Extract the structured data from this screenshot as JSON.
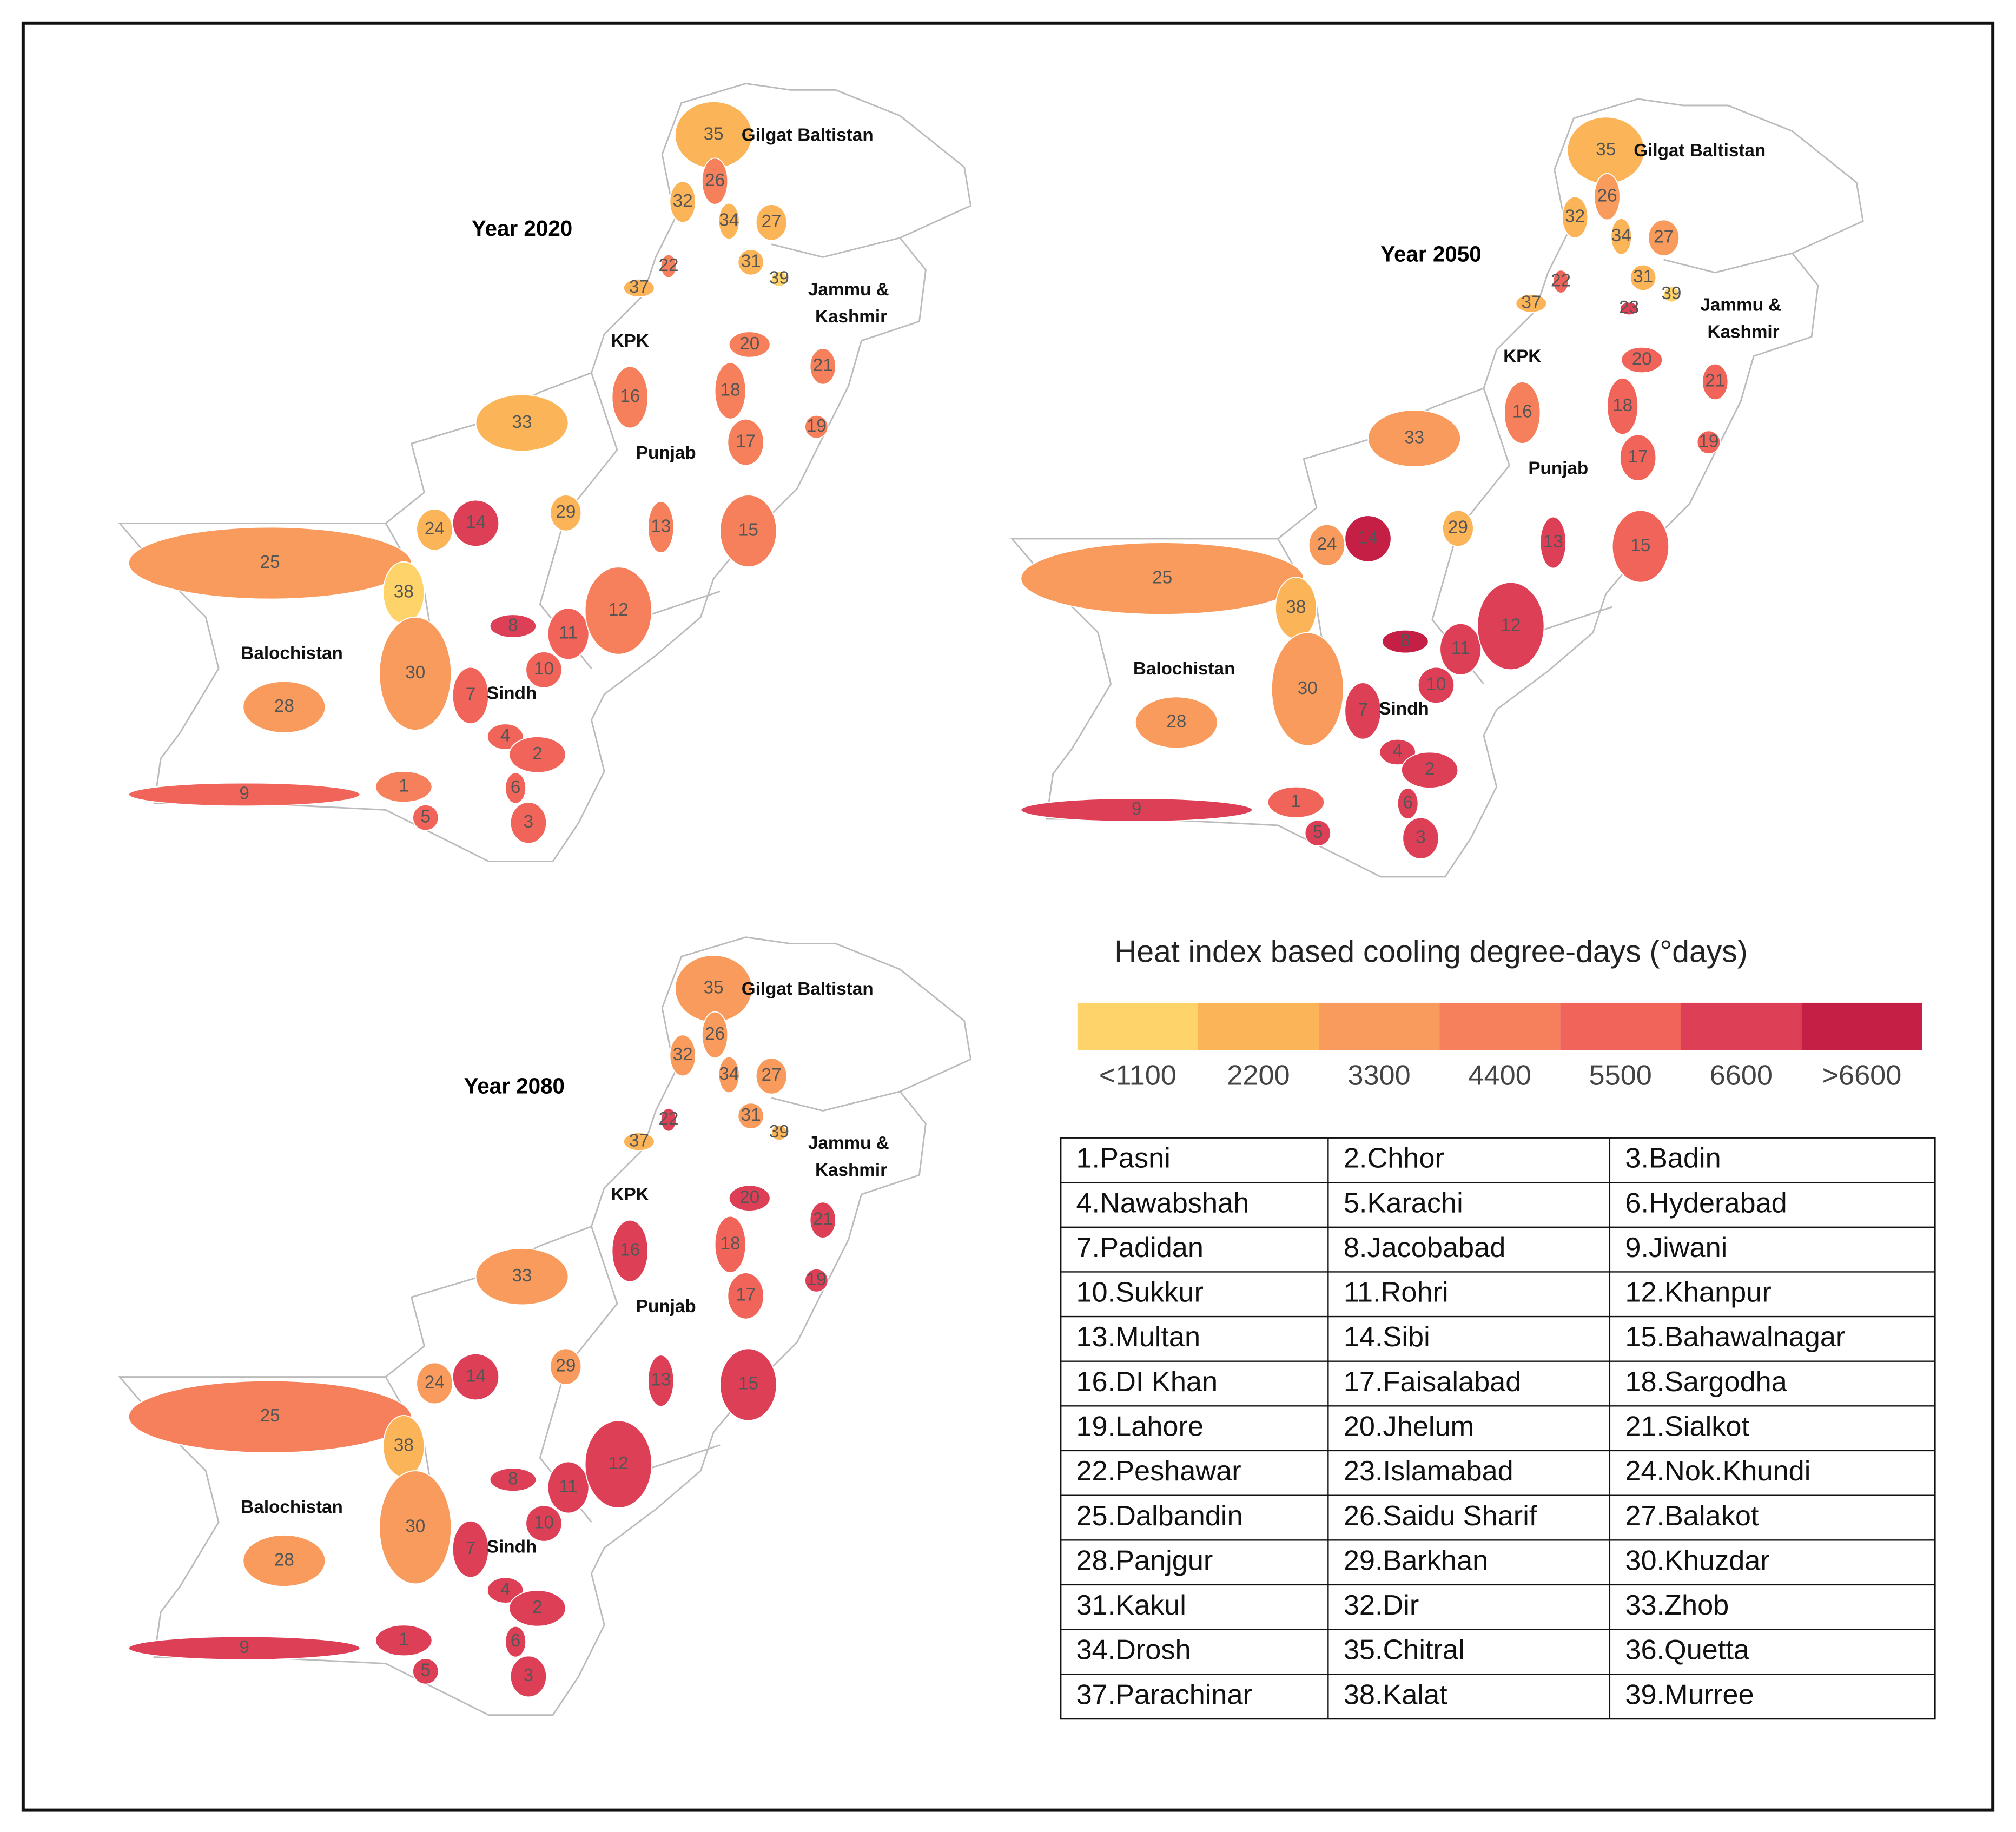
{
  "figure": {
    "maps": [
      {
        "title": "Year 2020",
        "regions": [
          "Gilgat Baltistan",
          "Jammu &",
          "Kashmir",
          "KPK",
          "Punjab",
          "Balochistan",
          "Sindh"
        ],
        "stations": [
          {
            "label": "35",
            "color": "#fbb457"
          },
          {
            "label": "26",
            "color": "#f6805c"
          },
          {
            "label": "32",
            "color": "#fbb457"
          },
          {
            "label": "34",
            "color": "#fbb457"
          },
          {
            "label": "27",
            "color": "#fbb457"
          },
          {
            "label": "31",
            "color": "#fbb457"
          },
          {
            "label": "39",
            "color": "#fdd36a"
          },
          {
            "label": "22",
            "color": "#f6805c"
          },
          {
            "label": "37",
            "color": "#fbb457"
          },
          {
            "label": "20",
            "color": "#f6805c"
          },
          {
            "label": "21",
            "color": "#f6805c"
          },
          {
            "label": "16",
            "color": "#f6805c"
          },
          {
            "label": "18",
            "color": "#f6805c"
          },
          {
            "label": "17",
            "color": "#f6805c"
          },
          {
            "label": "19",
            "color": "#f6805c"
          },
          {
            "label": "33",
            "color": "#fbb457"
          },
          {
            "label": "29",
            "color": "#fbb457"
          },
          {
            "label": "13",
            "color": "#f6805c"
          },
          {
            "label": "15",
            "color": "#f6805c"
          },
          {
            "label": "14",
            "color": "#dd3f56"
          },
          {
            "label": "24",
            "color": "#fbb457"
          },
          {
            "label": "25",
            "color": "#f99b5c"
          },
          {
            "label": "38",
            "color": "#fdd36a"
          },
          {
            "label": "8",
            "color": "#dd3f56"
          },
          {
            "label": "11",
            "color": "#f1645a"
          },
          {
            "label": "12",
            "color": "#f6805c"
          },
          {
            "label": "10",
            "color": "#f1645a"
          },
          {
            "label": "30",
            "color": "#f99b5c"
          },
          {
            "label": "28",
            "color": "#f99b5c"
          },
          {
            "label": "7",
            "color": "#f1645a"
          },
          {
            "label": "4",
            "color": "#f1645a"
          },
          {
            "label": "2",
            "color": "#f1645a"
          },
          {
            "label": "6",
            "color": "#f1645a"
          },
          {
            "label": "3",
            "color": "#f1645a"
          },
          {
            "label": "9",
            "color": "#f1645a"
          },
          {
            "label": "1",
            "color": "#f6805c"
          },
          {
            "label": "5",
            "color": "#f1645a"
          }
        ]
      },
      {
        "title": "Year 2050",
        "regions": [
          "Gilgat Baltistan",
          "Jammu &",
          "Kashmir",
          "KPK",
          "Punjab",
          "Balochistan",
          "Sindh"
        ],
        "stations": [
          {
            "label": "35",
            "color": "#fbb457"
          },
          {
            "label": "26",
            "color": "#f99b5c"
          },
          {
            "label": "32",
            "color": "#fbb457"
          },
          {
            "label": "34",
            "color": "#fbb457"
          },
          {
            "label": "27",
            "color": "#f99b5c"
          },
          {
            "label": "31",
            "color": "#fbb457"
          },
          {
            "label": "39",
            "color": "#fdd36a"
          },
          {
            "label": "23",
            "color": "#dd3f56"
          },
          {
            "label": "22",
            "color": "#f1645a"
          },
          {
            "label": "37",
            "color": "#fbb457"
          },
          {
            "label": "20",
            "color": "#f1645a"
          },
          {
            "label": "21",
            "color": "#f1645a"
          },
          {
            "label": "16",
            "color": "#f6805c"
          },
          {
            "label": "18",
            "color": "#f1645a"
          },
          {
            "label": "17",
            "color": "#f1645a"
          },
          {
            "label": "19",
            "color": "#f1645a"
          },
          {
            "label": "33",
            "color": "#f99b5c"
          },
          {
            "label": "29",
            "color": "#fbb457"
          },
          {
            "label": "13",
            "color": "#dd3f56"
          },
          {
            "label": "15",
            "color": "#f1645a"
          },
          {
            "label": "14",
            "color": "#c51f45"
          },
          {
            "label": "24",
            "color": "#f99b5c"
          },
          {
            "label": "25",
            "color": "#f99b5c"
          },
          {
            "label": "38",
            "color": "#fbb457"
          },
          {
            "label": "8",
            "color": "#c51f45"
          },
          {
            "label": "11",
            "color": "#dd3f56"
          },
          {
            "label": "12",
            "color": "#dd3f56"
          },
          {
            "label": "10",
            "color": "#dd3f56"
          },
          {
            "label": "30",
            "color": "#f99b5c"
          },
          {
            "label": "28",
            "color": "#f99b5c"
          },
          {
            "label": "7",
            "color": "#dd3f56"
          },
          {
            "label": "4",
            "color": "#dd3f56"
          },
          {
            "label": "2",
            "color": "#dd3f56"
          },
          {
            "label": "6",
            "color": "#dd3f56"
          },
          {
            "label": "3",
            "color": "#dd3f56"
          },
          {
            "label": "9",
            "color": "#dd3f56"
          },
          {
            "label": "1",
            "color": "#f1645a"
          },
          {
            "label": "5",
            "color": "#dd3f56"
          }
        ]
      },
      {
        "title": "Year 2080",
        "regions": [
          "Gilgat Baltistan",
          "Jammu &",
          "Kashmir",
          "KPK",
          "Punjab",
          "Balochistan",
          "Sindh"
        ],
        "stations": [
          {
            "label": "35",
            "color": "#f99b5c"
          },
          {
            "label": "26",
            "color": "#f99b5c"
          },
          {
            "label": "32",
            "color": "#f99b5c"
          },
          {
            "label": "34",
            "color": "#f99b5c"
          },
          {
            "label": "27",
            "color": "#f99b5c"
          },
          {
            "label": "31",
            "color": "#f99b5c"
          },
          {
            "label": "39",
            "color": "#fbb457"
          },
          {
            "label": "22",
            "color": "#dd3f56"
          },
          {
            "label": "37",
            "color": "#fbb457"
          },
          {
            "label": "20",
            "color": "#dd3f56"
          },
          {
            "label": "21",
            "color": "#dd3f56"
          },
          {
            "label": "16",
            "color": "#dd3f56"
          },
          {
            "label": "18",
            "color": "#f1645a"
          },
          {
            "label": "17",
            "color": "#f1645a"
          },
          {
            "label": "19",
            "color": "#dd3f56"
          },
          {
            "label": "33",
            "color": "#f99b5c"
          },
          {
            "label": "29",
            "color": "#f99b5c"
          },
          {
            "label": "13",
            "color": "#dd3f56"
          },
          {
            "label": "15",
            "color": "#dd3f56"
          },
          {
            "label": "14",
            "color": "#dd3f56"
          },
          {
            "label": "24",
            "color": "#f99b5c"
          },
          {
            "label": "25",
            "color": "#f6805c"
          },
          {
            "label": "38",
            "color": "#fbb457"
          },
          {
            "label": "8",
            "color": "#dd3f56"
          },
          {
            "label": "11",
            "color": "#dd3f56"
          },
          {
            "label": "12",
            "color": "#dd3f56"
          },
          {
            "label": "10",
            "color": "#dd3f56"
          },
          {
            "label": "30",
            "color": "#f99b5c"
          },
          {
            "label": "28",
            "color": "#f99b5c"
          },
          {
            "label": "7",
            "color": "#dd3f56"
          },
          {
            "label": "4",
            "color": "#dd3f56"
          },
          {
            "label": "2",
            "color": "#dd3f56"
          },
          {
            "label": "6",
            "color": "#dd3f56"
          },
          {
            "label": "3",
            "color": "#dd3f56"
          },
          {
            "label": "9",
            "color": "#dd3f56"
          },
          {
            "label": "1",
            "color": "#dd3f56"
          },
          {
            "label": "5",
            "color": "#dd3f56"
          }
        ]
      }
    ],
    "legend": {
      "title": "Heat index based cooling degree-days (°days)",
      "colors": [
        "#fdd36a",
        "#fbb457",
        "#f99b5c",
        "#f6805c",
        "#f1645a",
        "#dd3f56",
        "#c51f45"
      ],
      "labels": [
        "<1100",
        "2200",
        "3300",
        "4400",
        "5500",
        "6600",
        ">6600"
      ]
    },
    "table": {
      "rows": [
        [
          "1.Pasni",
          "2.Chhor",
          "3.Badin"
        ],
        [
          "4.Nawabshah",
          "5.Karachi",
          "6.Hyderabad"
        ],
        [
          "7.Padidan",
          "8.Jacobabad",
          "9.Jiwani"
        ],
        [
          "10.Sukkur",
          "11.Rohri",
          "12.Khanpur"
        ],
        [
          "13.Multan",
          "14.Sibi",
          "15.Bahawalnagar"
        ],
        [
          "16.DI Khan",
          "17.Faisalabad",
          "18.Sargodha"
        ],
        [
          "19.Lahore",
          "20.Jhelum",
          "21.Sialkot"
        ],
        [
          "22.Peshawar",
          "23.Islamabad",
          "24.Nok.Khundi"
        ],
        [
          "25.Dalbandin",
          "26.Saidu Sharif",
          "27.Balakot"
        ],
        [
          "28.Panjgur",
          "29.Barkhan",
          "30.Khuzdar"
        ],
        [
          "31.Kakul",
          "32.Dir",
          "33.Zhob"
        ],
        [
          "34.Drosh",
          "35.Chitral",
          "36.Quetta"
        ],
        [
          "37.Parachinar",
          "38.Kalat",
          "39.Murree"
        ]
      ]
    }
  }
}
